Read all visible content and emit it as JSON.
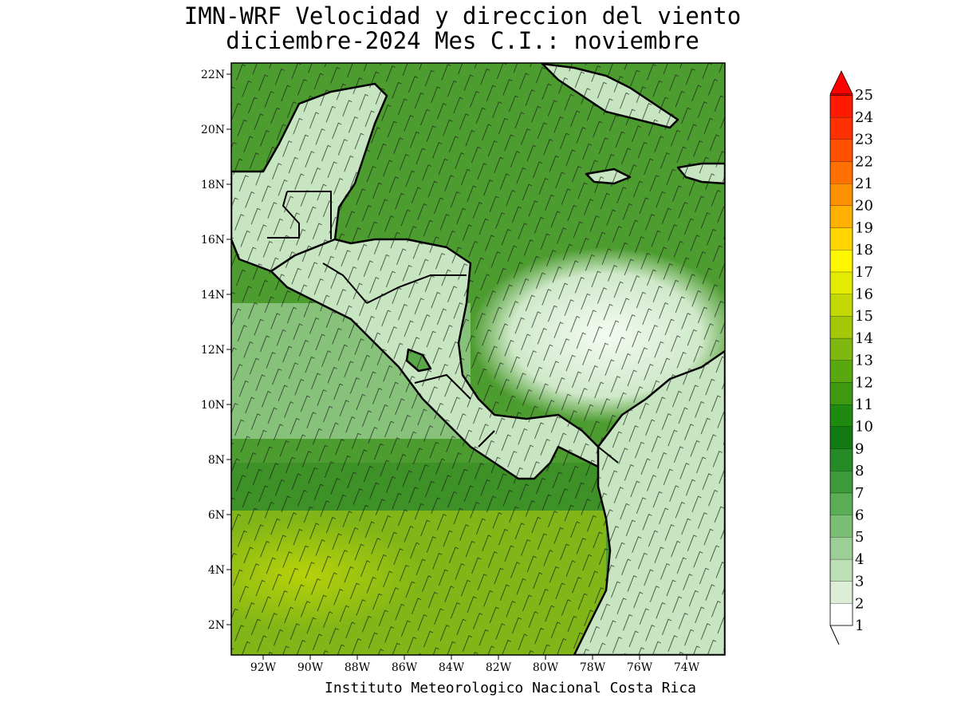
{
  "title_line1": "IMN-WRF Velocidad y direccion del viento",
  "title_line2": "diciembre-2024 Mes C.I.: noviembre",
  "credit": "Instituto Meteorologico Nacional Costa Rica",
  "map": {
    "lon_ticks": [
      "92W",
      "90W",
      "88W",
      "86W",
      "84W",
      "82W",
      "80W",
      "78W",
      "76W",
      "74W"
    ],
    "lat_ticks": [
      "22N",
      "20N",
      "18N",
      "16N",
      "14N",
      "12N",
      "10N",
      "8N",
      "6N",
      "4N",
      "2N"
    ],
    "lon_range": [
      -93.1,
      -72.0
    ],
    "lat_range": [
      1.0,
      22.4
    ],
    "ocean_color": "#5fa83a",
    "land_color": "#c8e6c4"
  },
  "colorbar": {
    "levels": [
      "1",
      "2",
      "3",
      "4",
      "5",
      "6",
      "7",
      "8",
      "9",
      "10",
      "11",
      "12",
      "13",
      "14",
      "15",
      "16",
      "17",
      "18",
      "19",
      "20",
      "21",
      "22",
      "23",
      "24",
      "25"
    ],
    "colors": [
      "#ffffff",
      "#dcefd6",
      "#bcdfb5",
      "#9ccf95",
      "#7bbf75",
      "#5aae55",
      "#3c9a3a",
      "#268a26",
      "#117a11",
      "#1f8a10",
      "#3d9a10",
      "#5aa810",
      "#7fb810",
      "#a2c808",
      "#c3d804",
      "#e5ea02",
      "#fff700",
      "#ffd400",
      "#ffb000",
      "#ff9000",
      "#ff7000",
      "#ff5000",
      "#ff3000",
      "#ff1a00",
      "#ff0000"
    ],
    "arrow_color": "#ff0000"
  }
}
